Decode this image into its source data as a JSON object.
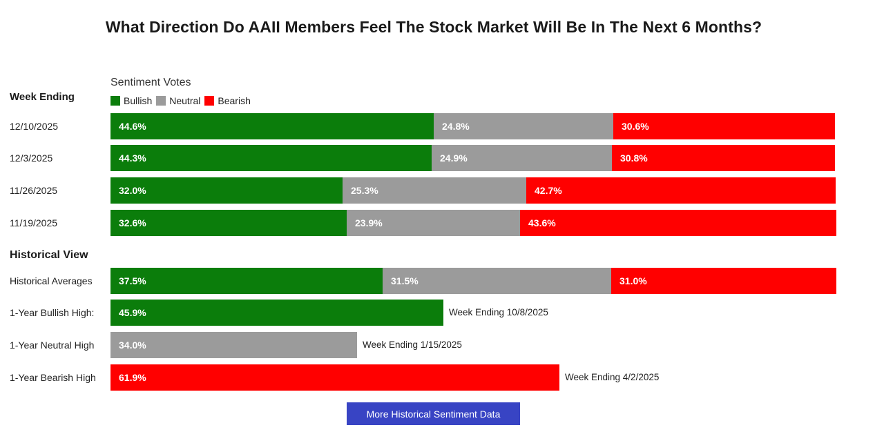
{
  "colors": {
    "bullish": "#0b7d0b",
    "neutral": "#9b9b9b",
    "bearish": "#ff0000",
    "button": "#3844c4"
  },
  "chart_data": {
    "type": "bar",
    "orientation": "horizontal-stacked",
    "title": "What Direction Do AAII Members Feel The Stock Market Will Be In The Next 6 Months?",
    "legend_title": "Sentiment Votes",
    "legend": [
      "Bullish",
      "Neutral",
      "Bearish"
    ],
    "weekly_header": "Week Ending",
    "weekly": [
      {
        "label": "12/10/2025",
        "bullish": 44.6,
        "neutral": 24.8,
        "bearish": 30.6
      },
      {
        "label": "12/3/2025",
        "bullish": 44.3,
        "neutral": 24.9,
        "bearish": 30.8
      },
      {
        "label": "11/26/2025",
        "bullish": 32.0,
        "neutral": 25.3,
        "bearish": 42.7
      },
      {
        "label": "11/19/2025",
        "bullish": 32.6,
        "neutral": 23.9,
        "bearish": 43.6
      }
    ],
    "historical_header": "Historical View",
    "historical_averages": {
      "label": "Historical Averages",
      "bullish": 37.5,
      "neutral": 31.5,
      "bearish": 31.0
    },
    "highs": [
      {
        "label": "1-Year Bullish High:",
        "type": "bullish",
        "value": 45.9,
        "note": "Week Ending 10/8/2025"
      },
      {
        "label": "1-Year Neutral High",
        "type": "neutral",
        "value": 34.0,
        "note": "Week Ending 1/15/2025"
      },
      {
        "label": "1-Year Bearish High",
        "type": "bearish",
        "value": 61.9,
        "note": "Week Ending 4/2/2025"
      }
    ]
  },
  "button": {
    "label": "More Historical Sentiment Data"
  }
}
